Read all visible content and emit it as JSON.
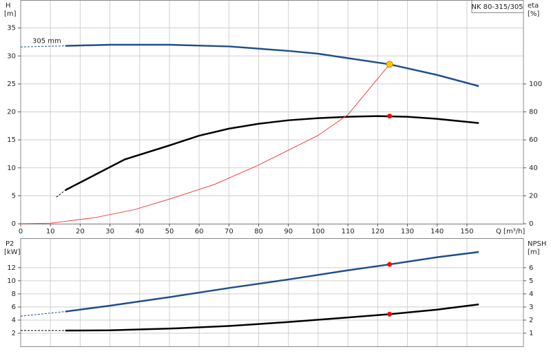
{
  "chart_data": [
    {
      "type": "line",
      "xlabel": "Q [m³/h]",
      "ylabel": "H",
      "yunit": "[m]",
      "y2label": "eta",
      "y2unit": "[%]",
      "box_label": "NK 80-315/305",
      "annotation": "305 mm",
      "xlim": [
        0,
        169
      ],
      "xticks": [
        0,
        10,
        20,
        30,
        40,
        50,
        60,
        70,
        80,
        90,
        100,
        110,
        120,
        130,
        140,
        150
      ],
      "ylim": [
        0,
        40
      ],
      "yticks": [
        0,
        5,
        10,
        15,
        20,
        25,
        30,
        35
      ],
      "y2lim": [
        0,
        160
      ],
      "y2ticks": [
        0,
        20,
        40,
        60,
        80,
        100
      ],
      "grid": true,
      "series": [
        {
          "color": "#1f4e8c",
          "dashed": true,
          "x": [
            0,
            15
          ],
          "values": [
            31.6,
            31.8
          ]
        },
        {
          "color": "#1f4e8c",
          "dashed": false,
          "x": [
            15,
            30,
            50,
            70,
            90,
            100,
            110,
            124,
            140,
            154
          ],
          "values": [
            31.8,
            32.0,
            32.0,
            31.7,
            30.9,
            30.4,
            29.6,
            28.5,
            26.6,
            24.6
          ]
        },
        {
          "color": "#000000",
          "dashed": true,
          "axis": "y2",
          "x": [
            12,
            15
          ],
          "values": [
            19,
            24
          ]
        },
        {
          "color": "#000000",
          "dashed": false,
          "axis": "y2",
          "x": [
            15,
            25,
            35,
            50,
            60,
            70,
            80,
            90,
            100,
            110,
            120,
            130,
            140,
            154
          ],
          "values": [
            24,
            35,
            46,
            56,
            63,
            68,
            71.5,
            74,
            75.5,
            76.5,
            77,
            76.5,
            75,
            72
          ]
        },
        {
          "color": "#ff3b3b",
          "dashed": false,
          "thin": true,
          "x": [
            0,
            10,
            25,
            38,
            50,
            65,
            80,
            100,
            110,
            124
          ],
          "values": [
            0,
            0.1,
            1.1,
            2.5,
            4.4,
            7,
            10.5,
            15.8,
            19.5,
            28.5
          ]
        }
      ],
      "markers": [
        {
          "x": 124,
          "y": 28.5,
          "color": "#ffcc00"
        },
        {
          "x": 124,
          "y": 77,
          "axis": "y2",
          "color": "#ff0000"
        }
      ]
    },
    {
      "type": "line",
      "ylabel": "P2",
      "yunit": "[kW]",
      "y2label": "NPSH",
      "y2unit": "[m]",
      "xlim": [
        0,
        169
      ],
      "xticks": [
        0,
        10,
        20,
        30,
        40,
        50,
        60,
        70,
        80,
        90,
        100,
        110,
        120,
        130,
        140,
        150
      ],
      "ylim": [
        0,
        16.5
      ],
      "yticks": [
        2,
        4,
        6,
        8,
        10,
        12
      ],
      "y2lim": [
        0,
        8.25
      ],
      "y2ticks": [
        1,
        2,
        3,
        4,
        5,
        6
      ],
      "grid": true,
      "series": [
        {
          "color": "#1f4e8c",
          "dashed": true,
          "x": [
            0,
            15
          ],
          "values": [
            4.6,
            5.3
          ]
        },
        {
          "color": "#1f4e8c",
          "dashed": false,
          "x": [
            15,
            30,
            50,
            70,
            90,
            110,
            124,
            140,
            154
          ],
          "values": [
            5.3,
            6.2,
            7.5,
            8.9,
            10.2,
            11.6,
            12.5,
            13.6,
            14.4
          ]
        },
        {
          "color": "#000000",
          "dashed": true,
          "axis": "y2",
          "x": [
            0,
            15
          ],
          "values": [
            1.2,
            1.2
          ]
        },
        {
          "color": "#000000",
          "dashed": false,
          "axis": "y2",
          "x": [
            15,
            30,
            50,
            70,
            90,
            110,
            124,
            140,
            154
          ],
          "values": [
            1.2,
            1.22,
            1.35,
            1.55,
            1.85,
            2.2,
            2.45,
            2.8,
            3.2
          ]
        }
      ],
      "markers": [
        {
          "x": 124,
          "y": 12.5,
          "color": "#ff0000"
        },
        {
          "x": 124,
          "y": 2.45,
          "axis": "y2",
          "color": "#ff0000"
        }
      ]
    }
  ]
}
